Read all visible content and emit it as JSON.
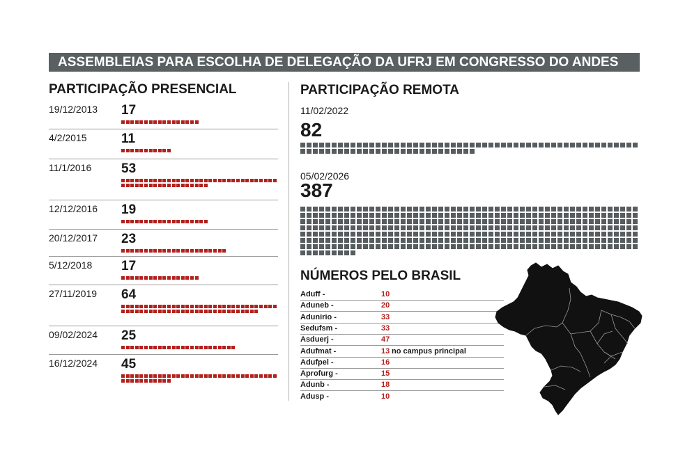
{
  "banner": "ASSEMBLEIAS PARA ESCOLHA DE DELEGAÇÃO DA UFRJ EM CONGRESSO DO ANDES",
  "presencial_title": "PARTICIPAÇÃO PRESENCIAL",
  "remota_title": "PARTICIPAÇÃO REMOTA",
  "brasil_title": "NÚMEROS PELO BRASIL",
  "colors": {
    "presencial": "#b3201c",
    "remota": "#575d5f",
    "banner": "#5a6062",
    "map": "#111111"
  },
  "chart_data": [
    {
      "type": "bar",
      "title": "PARTICIPAÇÃO PRESENCIAL",
      "categories": [
        "19/12/2013",
        "4/2/2015",
        "11/1/2016",
        "12/12/2016",
        "20/12/2017",
        "5/12/2018",
        "27/11/2019",
        "09/02/2024",
        "16/12/2024"
      ],
      "values": [
        17,
        11,
        53,
        19,
        23,
        17,
        64,
        25,
        45
      ],
      "labels": [
        "17",
        "11",
        "53",
        "19",
        "23",
        "17",
        "64",
        "25",
        "45"
      ]
    },
    {
      "type": "bar",
      "title": "PARTICIPAÇÃO REMOTA",
      "categories": [
        "11/02/2022",
        "05/02/2026"
      ],
      "values": [
        82,
        387
      ],
      "labels": [
        "82",
        "387"
      ]
    },
    {
      "type": "table",
      "title": "NÚMEROS PELO BRASIL",
      "rows": [
        {
          "name": "Aduff -",
          "value": "10",
          "note": ""
        },
        {
          "name": "Aduneb -",
          "value": "20",
          "note": ""
        },
        {
          "name": "Adunirio -",
          "value": "33",
          "note": ""
        },
        {
          "name": "Sedufsm -",
          "value": "33",
          "note": ""
        },
        {
          "name": "Asduerj -",
          "value": "47",
          "note": ""
        },
        {
          "name": "Adufmat -",
          "value": "13",
          "note": "no campus principal"
        },
        {
          "name": "Adufpel -",
          "value": "16",
          "note": ""
        },
        {
          "name": "Aprofurg -",
          "value": "15",
          "note": ""
        },
        {
          "name": "Adunb -",
          "value": "18",
          "note": ""
        },
        {
          "name": "Adusp -",
          "value": "10",
          "note": ""
        }
      ]
    }
  ]
}
